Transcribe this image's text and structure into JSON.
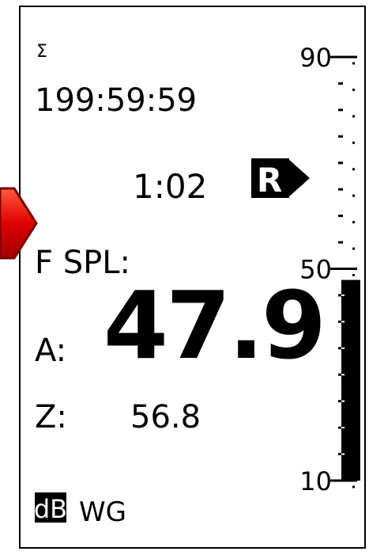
{
  "display": {
    "sum_symbol": "Σ",
    "total_time": "199:59:59",
    "elapsed_time": "1:02",
    "run_icon": "R",
    "mode": "F SPL:",
    "readings": [
      {
        "label": "A:",
        "value": 47.9
      },
      {
        "label": "Z:",
        "value": 56.8
      }
    ],
    "unit": "dB",
    "weighting": "WG",
    "meter": {
      "ylim": [
        10,
        90
      ],
      "yticks": [
        90,
        50,
        10
      ]
    }
  }
}
